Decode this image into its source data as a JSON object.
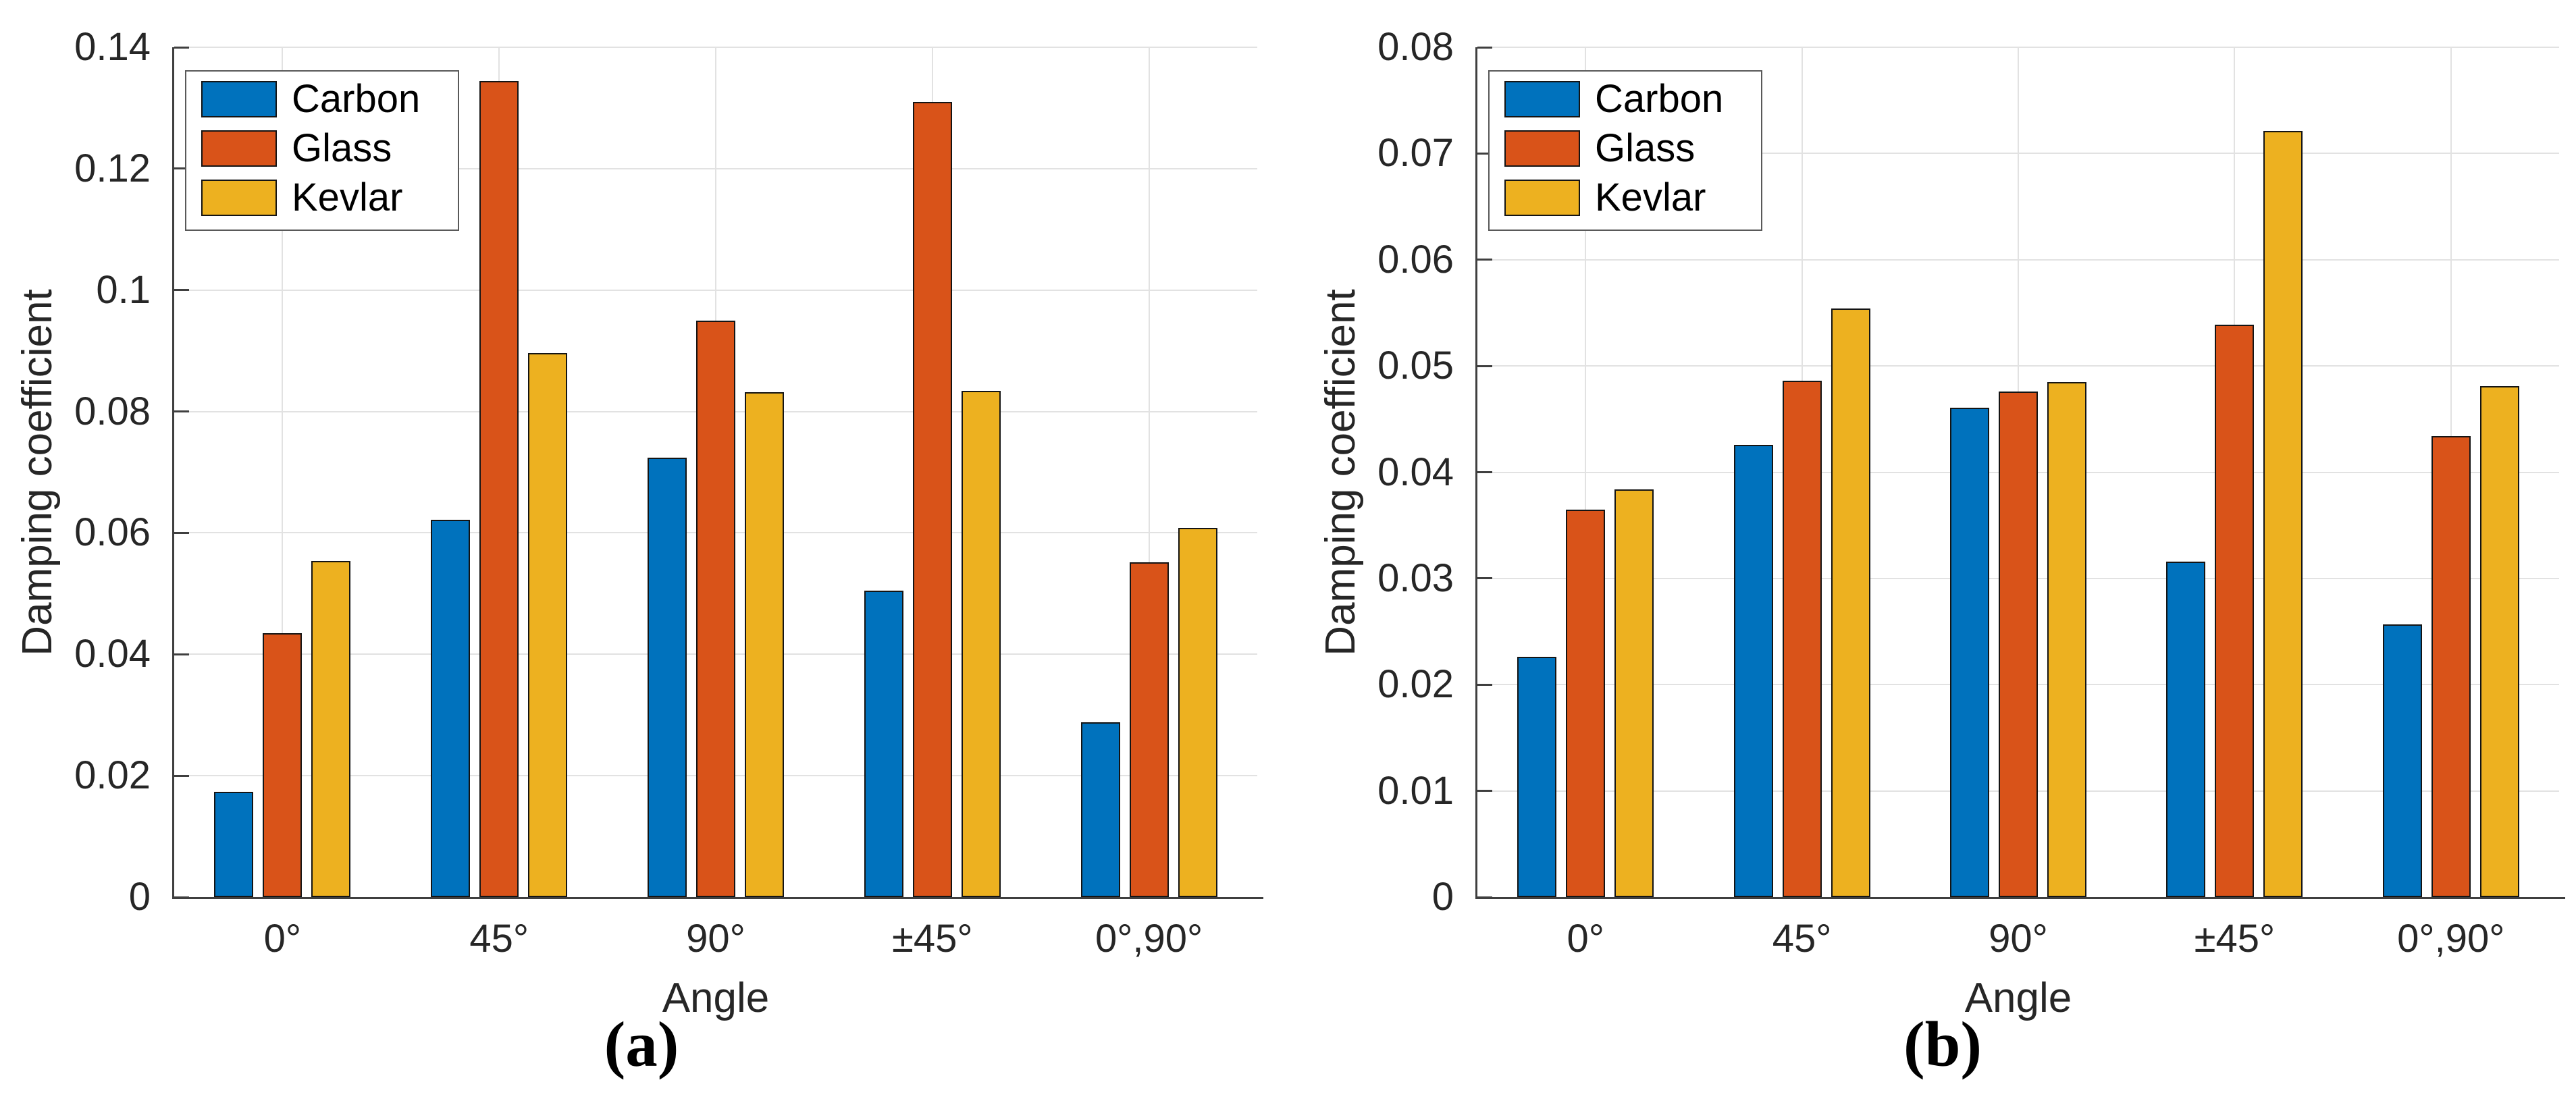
{
  "colors": {
    "Carbon": "#0072BD",
    "Glass": "#D95319",
    "Kevlar": "#EDB120"
  },
  "chart_data": [
    {
      "type": "bar",
      "caption": "(a)",
      "xlabel": "Angle",
      "ylabel": "Damping coefficient",
      "legend_position": "top-left",
      "grid": true,
      "categories": [
        "0°",
        "45°",
        "90°",
        "±45°",
        "0°,90°"
      ],
      "series": [
        {
          "name": "Carbon",
          "values": [
            0.0174,
            0.0622,
            0.0724,
            0.0505,
            0.0288
          ]
        },
        {
          "name": "Glass",
          "values": [
            0.0435,
            0.1344,
            0.095,
            0.131,
            0.0552
          ]
        },
        {
          "name": "Kevlar",
          "values": [
            0.0554,
            0.0896,
            0.0832,
            0.0834,
            0.0608
          ]
        }
      ],
      "ylim": [
        0,
        0.14
      ],
      "ytick_step": 0.02,
      "ytick_labels": [
        "0",
        "0.02",
        "0.04",
        "0.06",
        "0.08",
        "0.1",
        "0.12",
        "0.14"
      ]
    },
    {
      "type": "bar",
      "caption": "(b)",
      "xlabel": "Angle",
      "ylabel": "Damping coefficient",
      "legend_position": "top-left",
      "grid": true,
      "categories": [
        "0°",
        "45°",
        "90°",
        "±45°",
        "0°,90°"
      ],
      "series": [
        {
          "name": "Carbon",
          "values": [
            0.0226,
            0.0426,
            0.0461,
            0.0316,
            0.0257
          ]
        },
        {
          "name": "Glass",
          "values": [
            0.0365,
            0.0486,
            0.0476,
            0.0539,
            0.0434
          ]
        },
        {
          "name": "Kevlar",
          "values": [
            0.0384,
            0.0554,
            0.0485,
            0.0721,
            0.0481
          ]
        }
      ],
      "ylim": [
        0,
        0.08
      ],
      "ytick_step": 0.01,
      "ytick_labels": [
        "0",
        "0.01",
        "0.02",
        "0.03",
        "0.04",
        "0.05",
        "0.06",
        "0.07",
        "0.08"
      ]
    }
  ]
}
